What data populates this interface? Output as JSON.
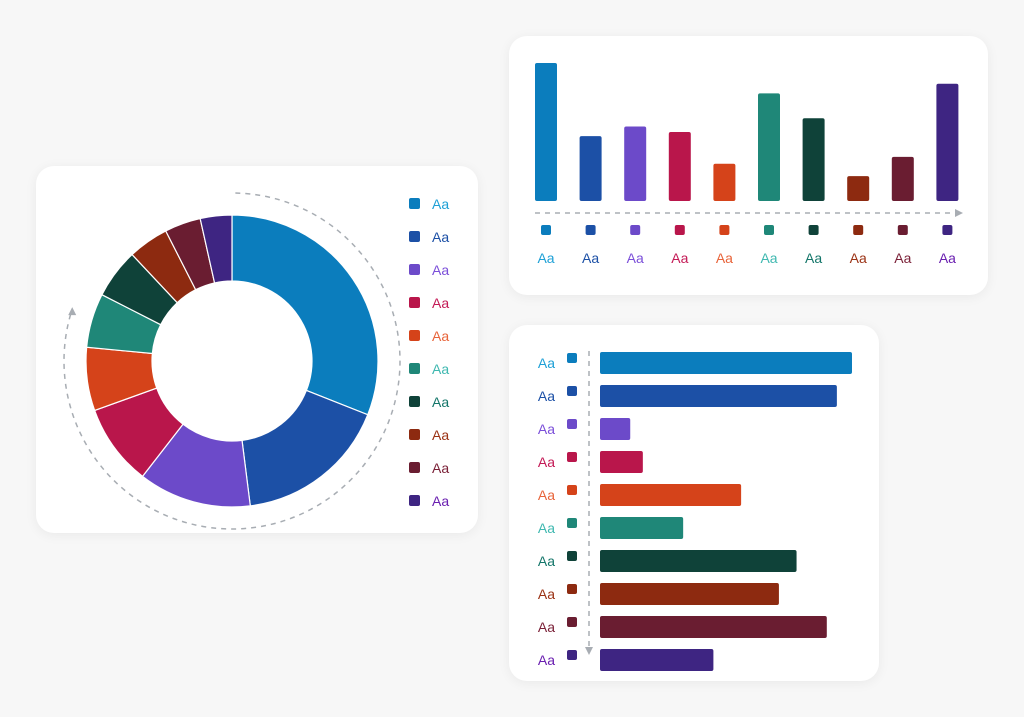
{
  "palette": {
    "blue": "#0b7dbd",
    "navy": "#1c50a6",
    "violet": "#6c4ac9",
    "crimson": "#b9164b",
    "orange": "#d5431a",
    "teal": "#1f8778",
    "darkgreen": "#0f4239",
    "brown": "#8d2a10",
    "maroon": "#6a1d31",
    "indigo": "#3e2582"
  },
  "label_colors": [
    "#1ea0d6",
    "#1c50a6",
    "#7b4fd9",
    "#c41a56",
    "#e8643a",
    "#3fb8b0",
    "#14766a",
    "#9b3214",
    "#7a1f36",
    "#6a1fb0"
  ],
  "chart_data": [
    {
      "type": "pie",
      "title": "",
      "categories": [
        "Aa",
        "Aa",
        "Aa",
        "Aa",
        "Aa",
        "Aa",
        "Aa",
        "Aa",
        "Aa",
        "Aa"
      ],
      "values": [
        31,
        17,
        12.5,
        9,
        7,
        6,
        5.5,
        4.5,
        4,
        3.5
      ],
      "legend": "right"
    },
    {
      "type": "bar",
      "title": "",
      "categories": [
        "Aa",
        "Aa",
        "Aa",
        "Aa",
        "Aa",
        "Aa",
        "Aa",
        "Aa",
        "Aa",
        "Aa"
      ],
      "values": [
        100,
        47,
        54,
        50,
        27,
        78,
        60,
        18,
        32,
        85
      ],
      "ylim": [
        0,
        100
      ]
    },
    {
      "type": "bar",
      "orientation": "horizontal",
      "title": "",
      "categories": [
        "Aa",
        "Aa",
        "Aa",
        "Aa",
        "Aa",
        "Aa",
        "Aa",
        "Aa",
        "Aa",
        "Aa"
      ],
      "values": [
        100,
        94,
        12,
        17,
        56,
        33,
        78,
        71,
        90,
        45
      ],
      "xlim": [
        0,
        100
      ]
    }
  ]
}
